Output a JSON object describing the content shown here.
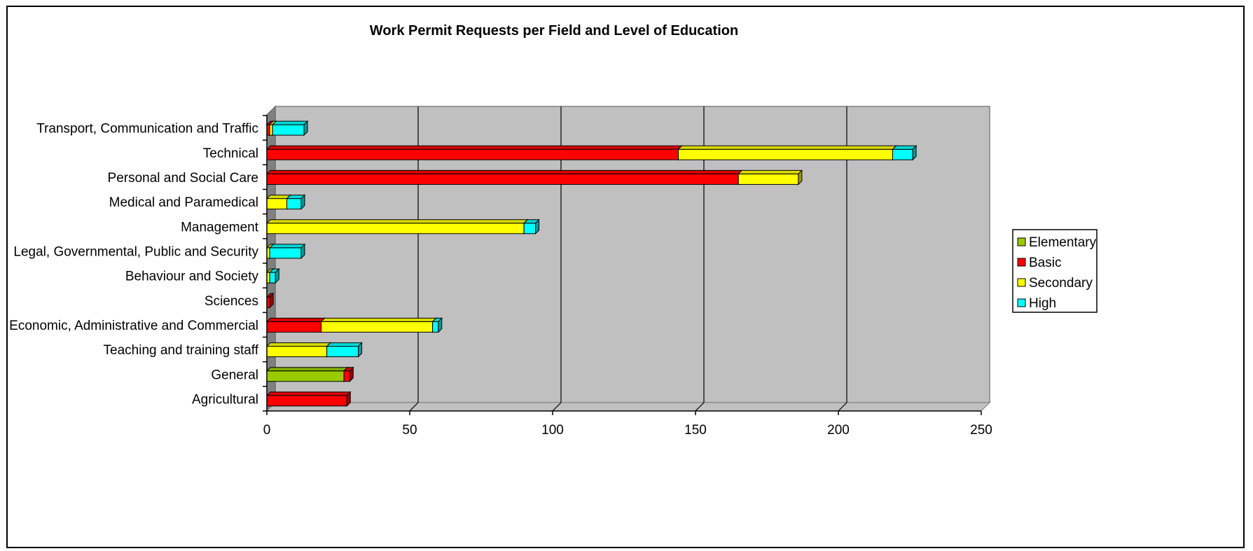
{
  "chart_data": {
    "type": "bar",
    "orientation": "horizontal",
    "stacked": true,
    "style": "3d",
    "title": "Work Permit Requests per Field and Level of Education",
    "xlabel": "",
    "ylabel": "",
    "xlim": [
      0,
      250
    ],
    "x_ticks": [
      "0",
      "50",
      "100",
      "150",
      "200",
      "250"
    ],
    "grid": true,
    "legend_position": "right",
    "categories": [
      "Agricultural",
      "General",
      "Teaching and training staff",
      "Economic, Administrative and Commercial",
      "Sciences",
      "Behaviour and Society",
      "Legal, Governmental, Public and Security",
      "Management",
      "Medical and Paramedical",
      "Personal and Social Care",
      "Technical",
      "Transport, Communication and Traffic"
    ],
    "series": [
      {
        "name": "Elementary",
        "color": "#99cc00",
        "values": [
          0,
          27,
          0,
          0,
          0,
          0,
          0,
          0,
          0,
          0,
          0,
          0
        ]
      },
      {
        "name": "Basic",
        "color": "#ff0000",
        "values": [
          28,
          2,
          0,
          19,
          1,
          0,
          0,
          0,
          0,
          165,
          144,
          1
        ]
      },
      {
        "name": "Secondary",
        "color": "#ffff00",
        "values": [
          0,
          0,
          21,
          39,
          0,
          1,
          1,
          90,
          7,
          21,
          75,
          1
        ]
      },
      {
        "name": "High",
        "color": "#00ffff",
        "values": [
          0,
          0,
          11,
          2,
          0,
          2,
          11,
          4,
          5,
          0,
          7,
          11
        ]
      }
    ]
  }
}
